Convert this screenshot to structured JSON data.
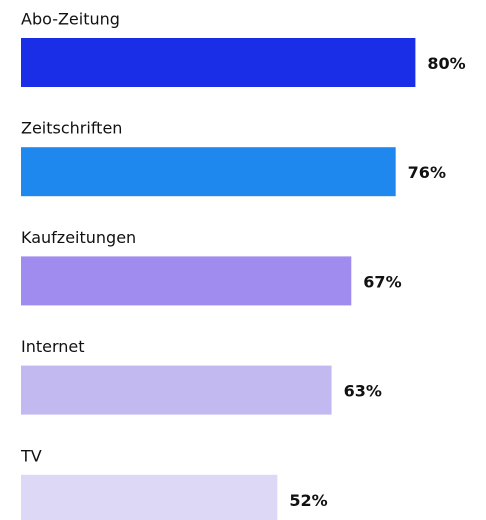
{
  "chart_data": {
    "type": "bar",
    "orientation": "horizontal",
    "categories": [
      "Abo-Zeitung",
      "Zeitschriften",
      "Kaufzeitungen",
      "Internet",
      "TV"
    ],
    "values": [
      80,
      76,
      67,
      63,
      52
    ],
    "value_labels": [
      "80%",
      "76%",
      "67%",
      "63%",
      "52%"
    ],
    "colors": [
      "#1a2ee8",
      "#1f88ee",
      "#a08cee",
      "#c3b9f1",
      "#ddd8f6"
    ]
  }
}
